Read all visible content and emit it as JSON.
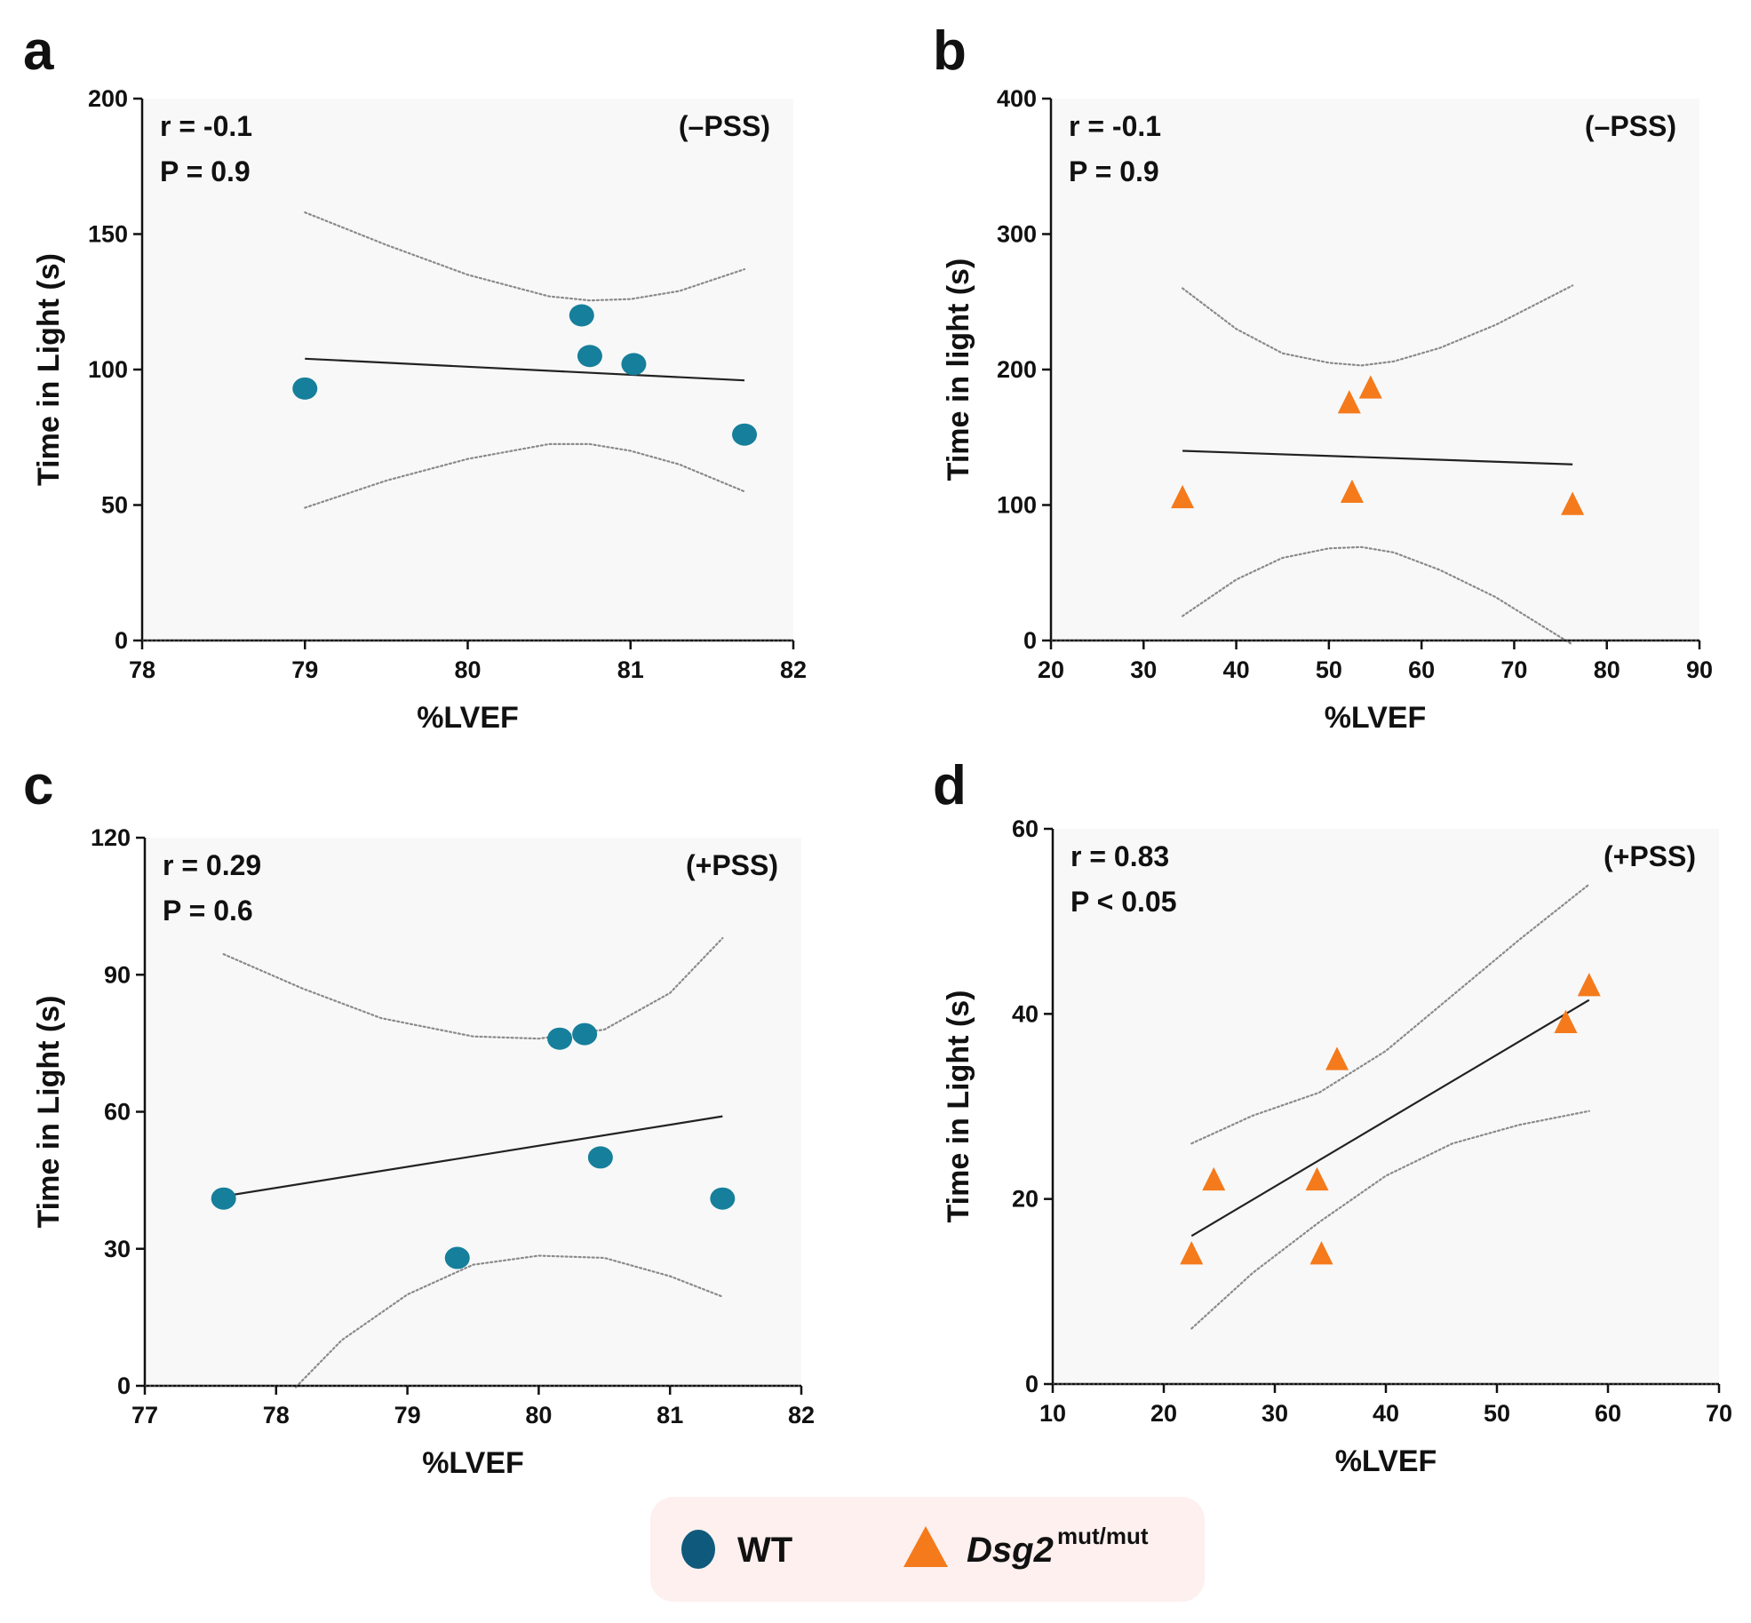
{
  "colors": {
    "wt": "#167f9b",
    "wt_legend": "#0f5a7c",
    "mutant": "#f47a1c",
    "significant": "#e8202a",
    "plot_bg": "#f8f8f8",
    "legend_bg": "#fdf0ee"
  },
  "legend": {
    "wt_label": "WT",
    "mutant_label": "Dsg2",
    "mutant_superscript": "mut/mut"
  },
  "chart_data": [
    {
      "panel": "a",
      "type": "scatter",
      "xlabel": "%LVEF",
      "ylabel": "Time in Light  (s)",
      "xlim": [
        78,
        82
      ],
      "ylim": [
        0,
        200
      ],
      "xticks": [
        78,
        79,
        80,
        81,
        82
      ],
      "yticks": [
        0,
        50,
        100,
        150,
        200
      ],
      "xtick_labels": [
        "78",
        "79",
        "80",
        "81",
        "82"
      ],
      "ytick_labels": [
        "0",
        "50",
        "100",
        "150",
        "200"
      ],
      "series_name": "WT",
      "marker": "circle",
      "points": [
        [
          79.0,
          93
        ],
        [
          80.7,
          120
        ],
        [
          80.75,
          105
        ],
        [
          81.02,
          102
        ],
        [
          81.7,
          76
        ]
      ],
      "fit": [
        [
          79.0,
          104
        ],
        [
          81.7,
          96
        ]
      ],
      "ci_upper": [
        [
          79.0,
          158
        ],
        [
          79.5,
          146
        ],
        [
          80.0,
          135
        ],
        [
          80.5,
          127
        ],
        [
          80.75,
          125.5
        ],
        [
          81.0,
          126
        ],
        [
          81.3,
          129
        ],
        [
          81.7,
          137
        ]
      ],
      "ci_lower": [
        [
          79.0,
          49
        ],
        [
          79.5,
          59
        ],
        [
          80.0,
          67
        ],
        [
          80.5,
          72.5
        ],
        [
          80.75,
          72.5
        ],
        [
          81.0,
          70
        ],
        [
          81.3,
          65
        ],
        [
          81.7,
          55
        ]
      ],
      "stat_r": "r = -0.1",
      "stat_p": "P = 0.9",
      "significant": false,
      "condition": "(–PSS)"
    },
    {
      "panel": "b",
      "type": "scatter",
      "xlabel": "%LVEF",
      "ylabel": "Time in light (s)",
      "xlim": [
        20,
        90
      ],
      "ylim": [
        0,
        400
      ],
      "xticks": [
        20,
        30,
        40,
        50,
        60,
        70,
        80,
        90
      ],
      "yticks": [
        0,
        100,
        200,
        300,
        400
      ],
      "xtick_labels": [
        "20",
        "30",
        "40",
        "50",
        "60",
        "70",
        "80",
        "90"
      ],
      "ytick_labels": [
        "0",
        "100",
        "200",
        "300",
        "400"
      ],
      "series_name": "Dsg2 mut/mut",
      "marker": "triangle",
      "points": [
        [
          34.2,
          105
        ],
        [
          52.2,
          175
        ],
        [
          54.5,
          186
        ],
        [
          52.5,
          109
        ],
        [
          76.3,
          100
        ]
      ],
      "fit": [
        [
          34.2,
          140
        ],
        [
          76.3,
          130
        ]
      ],
      "ci_upper": [
        [
          34.2,
          260
        ],
        [
          40,
          230
        ],
        [
          45,
          212
        ],
        [
          50,
          205
        ],
        [
          53.5,
          203
        ],
        [
          57,
          206
        ],
        [
          62,
          216
        ],
        [
          68,
          233
        ],
        [
          76.3,
          262
        ]
      ],
      "ci_lower": [
        [
          34.2,
          18
        ],
        [
          40,
          45
        ],
        [
          45,
          61
        ],
        [
          50,
          68
        ],
        [
          53.5,
          69
        ],
        [
          57,
          65
        ],
        [
          62,
          52
        ],
        [
          68,
          32
        ],
        [
          72,
          15
        ],
        [
          76.3,
          -3
        ]
      ],
      "stat_r": "r = -0.1",
      "stat_p": "P = 0.9",
      "significant": false,
      "condition": "(–PSS)"
    },
    {
      "panel": "c",
      "type": "scatter",
      "xlabel": "%LVEF",
      "ylabel": "Time in Light  (s)",
      "xlim": [
        77,
        82
      ],
      "ylim": [
        0,
        120
      ],
      "xticks": [
        77,
        78,
        79,
        80,
        81,
        82
      ],
      "yticks": [
        0,
        30,
        60,
        90,
        120
      ],
      "xtick_labels": [
        "77",
        "78",
        "79",
        "80",
        "81",
        "82"
      ],
      "ytick_labels": [
        "0",
        "30",
        "60",
        "90",
        "120"
      ],
      "series_name": "WT",
      "marker": "circle",
      "points": [
        [
          77.6,
          41
        ],
        [
          79.38,
          28
        ],
        [
          80.16,
          76
        ],
        [
          80.35,
          77
        ],
        [
          80.47,
          50
        ],
        [
          81.4,
          41
        ]
      ],
      "fit": [
        [
          77.6,
          41.5
        ],
        [
          81.4,
          59
        ]
      ],
      "ci_upper": [
        [
          77.6,
          94.5
        ],
        [
          78.2,
          87
        ],
        [
          78.8,
          80.5
        ],
        [
          79.5,
          76.5
        ],
        [
          80.0,
          76
        ],
        [
          80.5,
          78
        ],
        [
          81.0,
          86
        ],
        [
          81.4,
          98
        ]
      ],
      "ci_lower": [
        [
          78.15,
          -0.3
        ],
        [
          78.5,
          10
        ],
        [
          79.0,
          20
        ],
        [
          79.5,
          26.5
        ],
        [
          80.0,
          28.5
        ],
        [
          80.5,
          28
        ],
        [
          81.0,
          24
        ],
        [
          81.4,
          19.5
        ]
      ],
      "stat_r": "r = 0.29",
      "stat_p": "P = 0.6",
      "significant": false,
      "condition": "(+PSS)"
    },
    {
      "panel": "d",
      "type": "scatter",
      "xlabel": "%LVEF",
      "ylabel": "Time in Light  (s)",
      "xlim": [
        10,
        70
      ],
      "ylim": [
        0,
        60
      ],
      "xticks": [
        10,
        20,
        30,
        40,
        50,
        60,
        70
      ],
      "yticks": [
        0,
        20,
        40,
        60
      ],
      "xtick_labels": [
        "10",
        "20",
        "30",
        "40",
        "50",
        "60",
        "70"
      ],
      "ytick_labels": [
        "0",
        "20",
        "40",
        "60"
      ],
      "series_name": "Dsg2 mut/mut",
      "marker": "triangle",
      "points": [
        [
          22.5,
          14
        ],
        [
          24.5,
          22
        ],
        [
          33.8,
          22
        ],
        [
          34.2,
          14
        ],
        [
          35.6,
          35
        ],
        [
          56.2,
          39
        ],
        [
          58.3,
          43
        ]
      ],
      "fit": [
        [
          22.5,
          16
        ],
        [
          58.3,
          41.5
        ]
      ],
      "ci_upper": [
        [
          22.5,
          26
        ],
        [
          28,
          29
        ],
        [
          34,
          31.5
        ],
        [
          40,
          36
        ],
        [
          46,
          42
        ],
        [
          52,
          48
        ],
        [
          58.3,
          54
        ]
      ],
      "ci_lower": [
        [
          22.5,
          6
        ],
        [
          28,
          12
        ],
        [
          34,
          17.5
        ],
        [
          40,
          22.5
        ],
        [
          46,
          26
        ],
        [
          52,
          28
        ],
        [
          58.3,
          29.5
        ]
      ],
      "stat_r": "r = 0.83",
      "stat_p": "P < 0.05",
      "significant": true,
      "condition": "(+PSS)"
    }
  ]
}
